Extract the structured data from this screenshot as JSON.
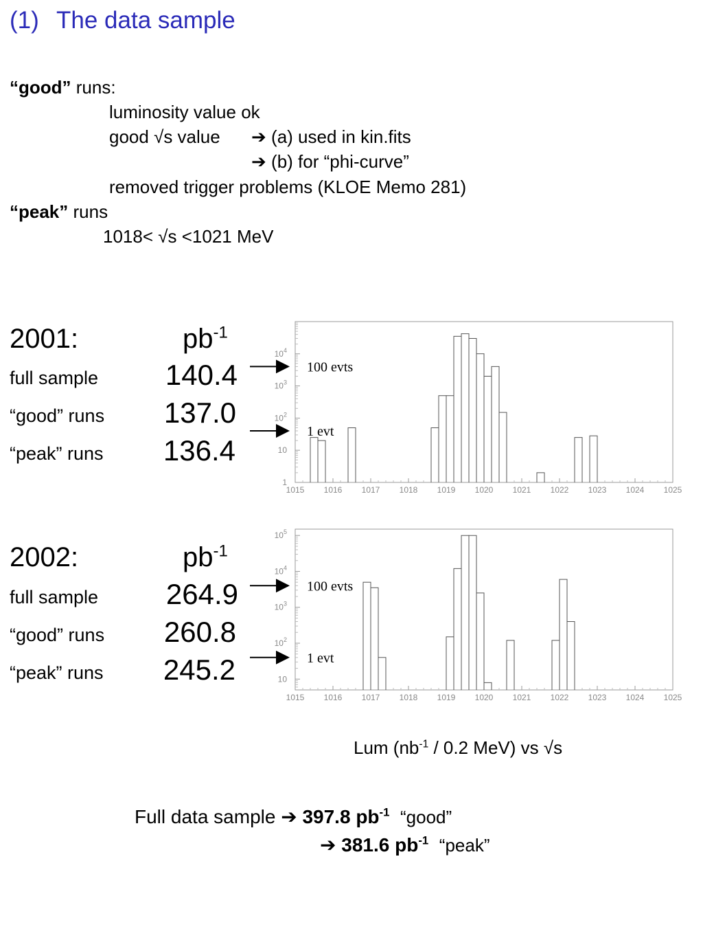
{
  "title": {
    "number": "(1)",
    "text": "The data sample"
  },
  "good_runs": {
    "heading_bold": "“good”",
    "heading_rest": " runs:",
    "line1": "luminosity value ok",
    "line2a": "good √s value",
    "line2b": "(a) used in kin.fits",
    "line3b": "(b) for “phi-curve”",
    "line4": "removed trigger problems (KLOE Memo 281)",
    "arrow_glyph": "➔"
  },
  "peak_runs": {
    "heading_bold": "“peak”",
    "heading_rest": " runs",
    "range": "1018< √s <1021 MeV"
  },
  "year2001": {
    "year": "2001:",
    "unit": "pb",
    "unit_sup": "-1",
    "rows": [
      {
        "label": "full sample",
        "value": "140.4"
      },
      {
        "label": "“good” runs",
        "value": "137.0"
      },
      {
        "label": "“peak” runs",
        "value": "136.4"
      }
    ]
  },
  "year2002": {
    "year": "2002:",
    "unit": "pb",
    "unit_sup": "-1",
    "rows": [
      {
        "label": "full sample",
        "value": "264.9"
      },
      {
        "label": "“good” runs",
        "value": "260.8"
      },
      {
        "label": "“peak” runs",
        "value": "245.2"
      }
    ]
  },
  "axis_caption": {
    "pre": "Lum (nb",
    "sup": "-1",
    "post": " / 0.2 MeV) vs  √s"
  },
  "summary": {
    "label": "Full data sample",
    "arrow": "➔",
    "good_value": "397.8 pb",
    "good_sup": "-1",
    "good_tag": "“good”",
    "peak_value": "381.6 pb",
    "peak_sup": "-1",
    "peak_tag": "“peak”"
  },
  "chart_data": [
    {
      "type": "histogram",
      "x_edges_start": 1015.0,
      "bin_width": 0.2,
      "xlim": [
        1015,
        1025
      ],
      "yscale": "log",
      "ylim": [
        1,
        100000
      ],
      "x_ticks": [
        "1015",
        "1016",
        "1017",
        "1018",
        "1019",
        "1020",
        "1021",
        "1022",
        "1023",
        "1024",
        "1025"
      ],
      "y_ticks": [
        {
          "base": "1",
          "exp": ""
        },
        {
          "base": "10",
          "exp": ""
        },
        {
          "base": "10",
          "exp": "2"
        },
        {
          "base": "10",
          "exp": "3"
        },
        {
          "base": "10",
          "exp": "4"
        }
      ],
      "bins": [
        {
          "x0": 1015.4,
          "value": 25
        },
        {
          "x0": 1015.6,
          "value": 20
        },
        {
          "x0": 1016.4,
          "value": 50
        },
        {
          "x0": 1018.6,
          "value": 50
        },
        {
          "x0": 1018.8,
          "value": 500
        },
        {
          "x0": 1019.0,
          "value": 500
        },
        {
          "x0": 1019.2,
          "value": 35000
        },
        {
          "x0": 1019.4,
          "value": 42000
        },
        {
          "x0": 1019.6,
          "value": 30000
        },
        {
          "x0": 1019.8,
          "value": 10000
        },
        {
          "x0": 1020.0,
          "value": 2000
        },
        {
          "x0": 1020.2,
          "value": 4000
        },
        {
          "x0": 1020.4,
          "value": 150
        },
        {
          "x0": 1021.4,
          "value": 2
        },
        {
          "x0": 1022.4,
          "value": 25
        },
        {
          "x0": 1022.8,
          "value": 28
        }
      ],
      "annotations": [
        {
          "text": "100 evts",
          "level": 4000
        },
        {
          "text": "1 evt",
          "level": 40
        }
      ]
    },
    {
      "type": "histogram",
      "x_edges_start": 1015.0,
      "bin_width": 0.2,
      "xlim": [
        1015,
        1025
      ],
      "yscale": "log",
      "ylim": [
        5,
        150000
      ],
      "x_ticks": [
        "1015",
        "1016",
        "1017",
        "1018",
        "1019",
        "1020",
        "1021",
        "1022",
        "1023",
        "1024",
        "1025"
      ],
      "y_ticks": [
        {
          "base": "10",
          "exp": ""
        },
        {
          "base": "10",
          "exp": "2"
        },
        {
          "base": "10",
          "exp": "3"
        },
        {
          "base": "10",
          "exp": "4"
        },
        {
          "base": "10",
          "exp": "5"
        }
      ],
      "bins": [
        {
          "x0": 1016.8,
          "value": 5000
        },
        {
          "x0": 1017.0,
          "value": 3500
        },
        {
          "x0": 1017.2,
          "value": 40
        },
        {
          "x0": 1019.0,
          "value": 150
        },
        {
          "x0": 1019.2,
          "value": 12000
        },
        {
          "x0": 1019.4,
          "value": 100000
        },
        {
          "x0": 1019.6,
          "value": 100000
        },
        {
          "x0": 1019.8,
          "value": 2500
        },
        {
          "x0": 1020.0,
          "value": 8
        },
        {
          "x0": 1020.6,
          "value": 120
        },
        {
          "x0": 1021.8,
          "value": 120
        },
        {
          "x0": 1022.0,
          "value": 6000
        },
        {
          "x0": 1022.2,
          "value": 400
        }
      ],
      "annotations": [
        {
          "text": "100 evts",
          "level": 4000
        },
        {
          "text": "1 evt",
          "level": 40
        }
      ]
    }
  ]
}
